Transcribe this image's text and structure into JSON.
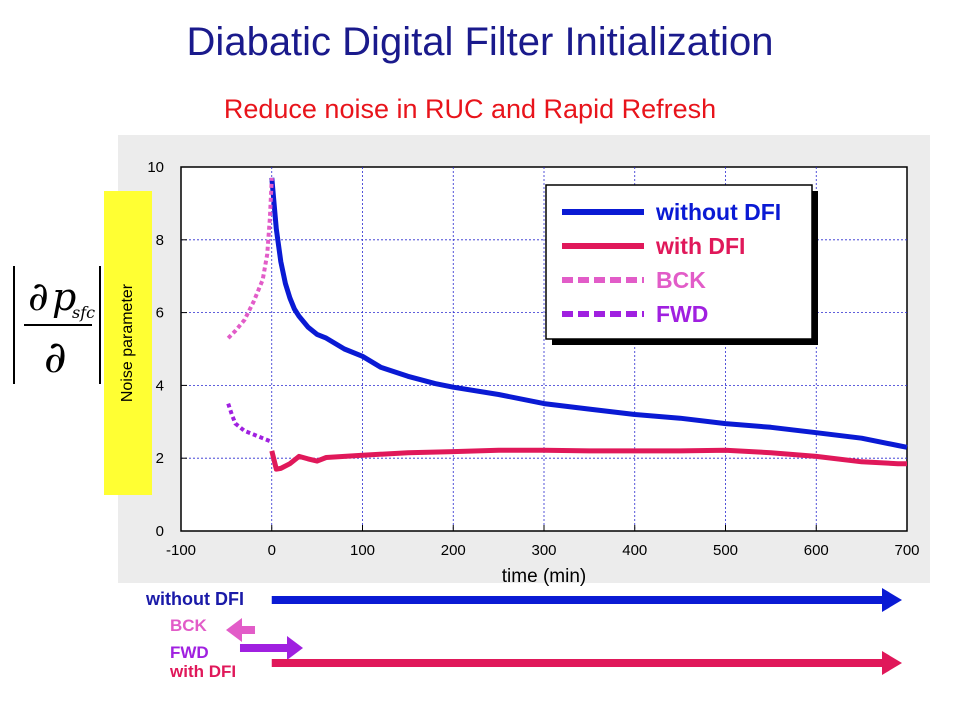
{
  "title": "Diabatic Digital Filter Initialization",
  "subtitle": "Reduce noise in RUC and Rapid Refresh",
  "ylabel_box": "Noise parameter",
  "formula": {
    "numerator_symbol": "∂",
    "numerator_var": "p",
    "numerator_sub": "sfc",
    "denominator_symbol": "∂"
  },
  "bottom_labels": {
    "without": "without DFI",
    "bck": "BCK",
    "fwd": "FWD",
    "with": "with DFI"
  },
  "colors": {
    "without": "#0a1ad4",
    "with": "#e0185a",
    "bck": "#e25cc8",
    "fwd": "#a020e0",
    "title": "#1a1a8c",
    "subtitle": "#e8141b",
    "highlight": "#ffff33"
  },
  "chart_data": {
    "type": "line",
    "xlabel": "time (min)",
    "ylabel": "",
    "xlim": [
      -100,
      700
    ],
    "ylim": [
      0,
      10
    ],
    "xticks": [
      -100,
      0,
      100,
      200,
      300,
      400,
      500,
      600,
      700
    ],
    "yticks": [
      0,
      2,
      4,
      6,
      8,
      10
    ],
    "grid": true,
    "legend_position": "top-right",
    "series": [
      {
        "name": "without DFI",
        "color": "#0a1ad4",
        "dash": "solid",
        "x": [
          0,
          5,
          10,
          15,
          20,
          25,
          30,
          40,
          50,
          60,
          80,
          100,
          120,
          150,
          180,
          200,
          250,
          300,
          350,
          400,
          450,
          500,
          550,
          600,
          650,
          690,
          700
        ],
        "y": [
          9.7,
          8.3,
          7.4,
          6.8,
          6.4,
          6.1,
          5.9,
          5.6,
          5.4,
          5.3,
          5.0,
          4.8,
          4.5,
          4.25,
          4.05,
          3.95,
          3.75,
          3.5,
          3.35,
          3.2,
          3.1,
          2.95,
          2.85,
          2.7,
          2.55,
          2.35,
          2.3
        ]
      },
      {
        "name": "with DFI",
        "color": "#e0185a",
        "dash": "solid",
        "x": [
          0,
          5,
          10,
          20,
          30,
          40,
          50,
          60,
          80,
          100,
          150,
          200,
          250,
          300,
          350,
          400,
          450,
          500,
          550,
          600,
          650,
          690,
          700
        ],
        "y": [
          2.2,
          1.7,
          1.72,
          1.85,
          2.05,
          1.98,
          1.92,
          2.02,
          2.05,
          2.08,
          2.15,
          2.18,
          2.22,
          2.22,
          2.2,
          2.2,
          2.2,
          2.22,
          2.15,
          2.05,
          1.9,
          1.85,
          1.85
        ]
      },
      {
        "name": "BCK",
        "color": "#e25cc8",
        "dash": "dashed",
        "x": [
          -48,
          -40,
          -30,
          -20,
          -10,
          -5,
          -2,
          0
        ],
        "y": [
          5.3,
          5.5,
          5.8,
          6.3,
          6.9,
          7.6,
          8.6,
          9.7
        ]
      },
      {
        "name": "FWD",
        "color": "#a020e0",
        "dash": "dashed",
        "x": [
          -48,
          -44,
          -40,
          -35,
          -30,
          -20,
          -10,
          -5,
          0
        ],
        "y": [
          3.5,
          3.2,
          2.95,
          2.85,
          2.75,
          2.65,
          2.55,
          2.5,
          2.45
        ]
      }
    ]
  }
}
